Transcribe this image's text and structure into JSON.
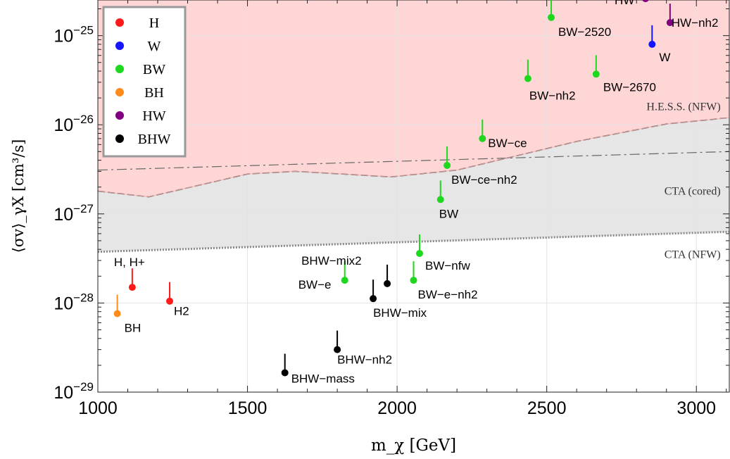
{
  "chart_data": {
    "type": "scatter",
    "xlabel": "m_χ [GeV]",
    "ylabel": "⟨σv⟩_γX [cm³/s]",
    "xlim": [
      1000,
      3110
    ],
    "ylim_log10": [
      -29,
      -24.6
    ],
    "y_scale": "log",
    "x_ticks": [
      "1000",
      "1500",
      "2000",
      "2500",
      "3000"
    ],
    "y_ticks": [
      {
        "base": "10",
        "exp": "−29"
      },
      {
        "base": "10",
        "exp": "−28"
      },
      {
        "base": "10",
        "exp": "−27"
      },
      {
        "base": "10",
        "exp": "−26"
      },
      {
        "base": "10",
        "exp": "−25"
      }
    ],
    "grid": true,
    "legend_position": "top-left",
    "legend": [
      {
        "label": "H",
        "color": "#ff1a1a"
      },
      {
        "label": "W",
        "color": "#1414ff"
      },
      {
        "label": "BW",
        "color": "#1ed81e"
      },
      {
        "label": "BH",
        "color": "#ff8c1a"
      },
      {
        "label": "HW",
        "color": "#800080"
      },
      {
        "label": "BHW",
        "color": "#000000"
      }
    ],
    "series": [
      {
        "name": "H",
        "color": "#ff1a1a",
        "points": [
          {
            "x": 1115,
            "y": 1.5e-28,
            "label": "H, H+"
          },
          {
            "x": 1240,
            "y": 1.05e-28,
            "label": "H2"
          }
        ]
      },
      {
        "name": "W",
        "color": "#1414ff",
        "points": [
          {
            "x": 2852,
            "y": 8e-26,
            "label": "W"
          }
        ]
      },
      {
        "name": "BW",
        "color": "#1ed81e",
        "points": [
          {
            "x": 2515,
            "y": 1.6e-25,
            "label": "BW−2520"
          },
          {
            "x": 2665,
            "y": 3.7e-26,
            "label": "BW−2670"
          },
          {
            "x": 2437,
            "y": 3.3e-26,
            "label": "BW−nh2"
          },
          {
            "x": 2285,
            "y": 7e-27,
            "label": "BW−ce"
          },
          {
            "x": 2167,
            "y": 3.5e-27,
            "label": "BW−ce−nh2"
          },
          {
            "x": 2145,
            "y": 1.45e-27,
            "label": "BW"
          },
          {
            "x": 2075,
            "y": 3.6e-28,
            "label": "BW−nfw"
          },
          {
            "x": 1825,
            "y": 1.8e-28,
            "label": "BW−e"
          },
          {
            "x": 2055,
            "y": 1.8e-28,
            "label": "BW−e−nh2"
          }
        ]
      },
      {
        "name": "BH",
        "color": "#ff8c1a",
        "points": [
          {
            "x": 1065,
            "y": 7.6e-29,
            "label": "BH"
          }
        ]
      },
      {
        "name": "HW",
        "color": "#800080",
        "points": [
          {
            "x": 2830,
            "y": 2.6e-25,
            "label": "HW"
          },
          {
            "x": 2912,
            "y": 1.4e-25,
            "label": "HW−nh2"
          }
        ]
      },
      {
        "name": "BHW",
        "color": "#000000",
        "points": [
          {
            "x": 1967,
            "y": 1.65e-28,
            "label": "BHW−mix2"
          },
          {
            "x": 1920,
            "y": 1.12e-28,
            "label": "BHW−mix"
          },
          {
            "x": 1800,
            "y": 3e-29,
            "label": "BHW−nh2"
          },
          {
            "x": 1625,
            "y": 1.65e-29,
            "label": "BHW−mass"
          }
        ]
      }
    ],
    "limits": [
      {
        "name": "H.E.S.S. (NFW)",
        "style": "dashed",
        "points": [
          [
            1000,
            1.8e-27
          ],
          [
            1170,
            1.55e-27
          ],
          [
            1500,
            2.8e-27
          ],
          [
            1660,
            3e-27
          ],
          [
            1980,
            2.6e-27
          ],
          [
            2200,
            3.1e-27
          ],
          [
            2600,
            6.5e-27
          ],
          [
            2900,
            1.02e-26
          ],
          [
            3110,
            1.2e-26
          ]
        ]
      },
      {
        "name": "CTA (cored)",
        "style": "dash-dot",
        "points": [
          [
            1000,
            3.1e-27
          ],
          [
            3110,
            5e-27
          ]
        ]
      },
      {
        "name": "CTA (NFW)",
        "style": "dotted",
        "points": [
          [
            1000,
            3.75e-28
          ],
          [
            3110,
            6.3e-28
          ]
        ]
      }
    ],
    "colors": {
      "excluded_region": "#ffd6d6",
      "cta_region": "#e6e6e6",
      "grid": "#e3e3e3"
    }
  }
}
